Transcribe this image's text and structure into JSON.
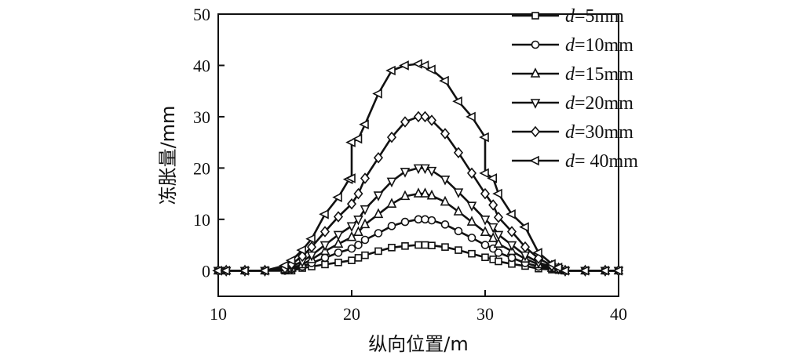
{
  "chart_data": {
    "type": "line",
    "xlabel": "纵向位置/m",
    "ylabel": "冻胀量/mm",
    "xlim": [
      10,
      40
    ],
    "ylim": [
      -5,
      50
    ],
    "xticks": [
      10,
      20,
      30,
      40
    ],
    "yticks": [
      0,
      10,
      20,
      30,
      40,
      50
    ],
    "grid": false,
    "legend_position": "top-right",
    "series": [
      {
        "name": "d=5mm",
        "name_var": "d",
        "name_rest": "=5mm",
        "marker": "square",
        "points": [
          [
            10,
            0
          ],
          [
            10.6,
            0
          ],
          [
            12,
            0
          ],
          [
            13.5,
            0
          ],
          [
            15,
            0
          ],
          [
            15.5,
            0
          ],
          [
            16.3,
            0.5
          ],
          [
            17,
            0.8
          ],
          [
            18,
            1.2
          ],
          [
            19,
            1.6
          ],
          [
            20,
            2.0
          ],
          [
            20.5,
            2.5
          ],
          [
            21,
            3.0
          ],
          [
            22,
            3.8
          ],
          [
            23,
            4.5
          ],
          [
            24,
            4.8
          ],
          [
            25,
            5.0
          ],
          [
            25.5,
            5.0
          ],
          [
            26,
            4.9
          ],
          [
            27,
            4.6
          ],
          [
            28,
            4.0
          ],
          [
            29,
            3.3
          ],
          [
            30,
            2.6
          ],
          [
            30.6,
            2.2
          ],
          [
            31,
            1.8
          ],
          [
            32,
            1.3
          ],
          [
            33,
            0.9
          ],
          [
            34,
            0.4
          ],
          [
            35,
            0.2
          ],
          [
            35.5,
            0.1
          ],
          [
            36,
            0
          ],
          [
            37.5,
            0
          ],
          [
            39,
            0
          ],
          [
            40,
            0
          ]
        ]
      },
      {
        "name": "d=10mm",
        "name_var": "d",
        "name_rest": "=10mm",
        "marker": "circle",
        "points": [
          [
            10,
            0
          ],
          [
            10.6,
            0
          ],
          [
            12,
            0
          ],
          [
            13.5,
            0
          ],
          [
            15,
            0
          ],
          [
            15.5,
            0.3
          ],
          [
            16.3,
            0.8
          ],
          [
            17,
            1.5
          ],
          [
            18,
            2.5
          ],
          [
            19,
            3.5
          ],
          [
            20,
            4.3
          ],
          [
            20.5,
            5.0
          ],
          [
            21,
            6.0
          ],
          [
            22,
            7.3
          ],
          [
            23,
            8.7
          ],
          [
            24,
            9.5
          ],
          [
            25,
            10.0
          ],
          [
            25.5,
            10.0
          ],
          [
            26,
            9.8
          ],
          [
            27,
            9.0
          ],
          [
            28,
            7.7
          ],
          [
            29,
            6.4
          ],
          [
            30,
            5.0
          ],
          [
            30.6,
            4.3
          ],
          [
            31,
            3.5
          ],
          [
            32,
            2.5
          ],
          [
            33,
            1.5
          ],
          [
            34,
            0.8
          ],
          [
            35,
            0.4
          ],
          [
            35.5,
            0.2
          ],
          [
            36,
            0
          ],
          [
            37.5,
            0
          ],
          [
            39,
            0
          ],
          [
            40,
            0
          ]
        ]
      },
      {
        "name": "d=15mm",
        "name_var": "d",
        "name_rest": "=15mm",
        "marker": "triangle-up",
        "points": [
          [
            10,
            0
          ],
          [
            10.6,
            0
          ],
          [
            12,
            0
          ],
          [
            13.5,
            0
          ],
          [
            15,
            0.2
          ],
          [
            15.5,
            0.5
          ],
          [
            16.3,
            1.2
          ],
          [
            17,
            2.2
          ],
          [
            18,
            3.8
          ],
          [
            19,
            5.2
          ],
          [
            20,
            6.5
          ],
          [
            20.5,
            7.5
          ],
          [
            21,
            9.0
          ],
          [
            22,
            11.0
          ],
          [
            23,
            13.0
          ],
          [
            24,
            14.5
          ],
          [
            25,
            15.0
          ],
          [
            25.5,
            15.0
          ],
          [
            26,
            14.6
          ],
          [
            27,
            13.4
          ],
          [
            28,
            11.5
          ],
          [
            29,
            9.5
          ],
          [
            30,
            7.5
          ],
          [
            30.6,
            6.3
          ],
          [
            31,
            5.2
          ],
          [
            32,
            3.8
          ],
          [
            33,
            2.3
          ],
          [
            34,
            1.2
          ],
          [
            35,
            0.5
          ],
          [
            35.5,
            0.3
          ],
          [
            36,
            0
          ],
          [
            37.5,
            0
          ],
          [
            39,
            0
          ],
          [
            40,
            0
          ]
        ]
      },
      {
        "name": "d=20mm",
        "name_var": "d",
        "name_rest": "=20mm",
        "marker": "triangle-down",
        "points": [
          [
            10,
            0
          ],
          [
            10.6,
            0
          ],
          [
            12,
            0
          ],
          [
            13.5,
            0
          ],
          [
            15,
            0.3
          ],
          [
            15.5,
            0.8
          ],
          [
            16.3,
            1.8
          ],
          [
            17,
            3.0
          ],
          [
            18,
            5.0
          ],
          [
            19,
            7.0
          ],
          [
            20,
            8.7
          ],
          [
            20.5,
            10.0
          ],
          [
            21,
            12.0
          ],
          [
            22,
            14.7
          ],
          [
            23,
            17.4
          ],
          [
            24,
            19.3
          ],
          [
            25,
            20.0
          ],
          [
            25.5,
            20.0
          ],
          [
            26,
            19.5
          ],
          [
            27,
            17.8
          ],
          [
            28,
            15.3
          ],
          [
            29,
            12.7
          ],
          [
            30,
            10.0
          ],
          [
            30.6,
            8.5
          ],
          [
            31,
            7.0
          ],
          [
            32,
            5.0
          ],
          [
            33,
            3.0
          ],
          [
            34,
            1.6
          ],
          [
            35,
            0.7
          ],
          [
            35.5,
            0.4
          ],
          [
            36,
            0
          ],
          [
            37.5,
            0
          ],
          [
            39,
            0
          ],
          [
            40,
            0
          ]
        ]
      },
      {
        "name": "d=30mm",
        "name_var": "d",
        "name_rest": "=30mm",
        "marker": "diamond",
        "points": [
          [
            10,
            0
          ],
          [
            10.6,
            0
          ],
          [
            12,
            0
          ],
          [
            13.5,
            0
          ],
          [
            15,
            0.5
          ],
          [
            15.5,
            1.3
          ],
          [
            16.3,
            2.8
          ],
          [
            17,
            4.6
          ],
          [
            18,
            7.6
          ],
          [
            19,
            10.5
          ],
          [
            20,
            13.0
          ],
          [
            20.5,
            15.0
          ],
          [
            21,
            18.0
          ],
          [
            22,
            22.0
          ],
          [
            23,
            26.0
          ],
          [
            24,
            29.0
          ],
          [
            25,
            30.0
          ],
          [
            25.5,
            30.0
          ],
          [
            26,
            29.3
          ],
          [
            27,
            26.7
          ],
          [
            28,
            23.0
          ],
          [
            29,
            19.0
          ],
          [
            30,
            15.0
          ],
          [
            30.6,
            12.8
          ],
          [
            31,
            10.4
          ],
          [
            32,
            7.6
          ],
          [
            33,
            4.6
          ],
          [
            34,
            2.4
          ],
          [
            35,
            1.0
          ],
          [
            35.5,
            0.5
          ],
          [
            36,
            0
          ],
          [
            37.5,
            0
          ],
          [
            39,
            0
          ],
          [
            40,
            0
          ]
        ]
      },
      {
        "name": "d= 40mm",
        "name_var": "d",
        "name_rest": "= 40mm",
        "marker": "triangle-left",
        "points": [
          [
            10,
            0
          ],
          [
            10.6,
            0
          ],
          [
            12,
            0
          ],
          [
            13.5,
            0
          ],
          [
            15,
            1.0
          ],
          [
            15.5,
            2.0
          ],
          [
            16.3,
            4.0
          ],
          [
            17,
            6.2
          ],
          [
            18,
            11.0
          ],
          [
            19,
            14.3
          ],
          [
            19.8,
            17.8
          ],
          [
            20,
            18.0
          ],
          [
            20,
            25.0
          ],
          [
            20.5,
            25.7
          ],
          [
            21,
            28.5
          ],
          [
            22,
            34.5
          ],
          [
            23,
            39.0
          ],
          [
            24,
            40.0
          ],
          [
            25,
            40.3
          ],
          [
            25.5,
            40.0
          ],
          [
            26,
            39.2
          ],
          [
            27,
            37.0
          ],
          [
            28,
            33.0
          ],
          [
            29,
            30.0
          ],
          [
            30,
            26.0
          ],
          [
            30,
            19.0
          ],
          [
            30.6,
            18.0
          ],
          [
            31,
            15.0
          ],
          [
            32,
            11.0
          ],
          [
            33,
            8.5
          ],
          [
            34,
            3.5
          ],
          [
            35,
            1.3
          ],
          [
            35.5,
            0.6
          ],
          [
            36,
            0
          ],
          [
            37.5,
            0
          ],
          [
            39,
            0
          ],
          [
            40,
            0
          ]
        ]
      }
    ]
  }
}
